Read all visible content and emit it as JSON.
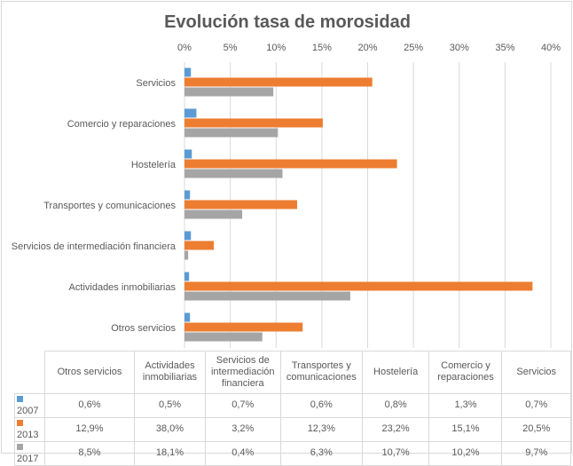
{
  "chart_data": {
    "type": "bar",
    "orientation": "horizontal",
    "title": "Evolución tasa de morosidad",
    "xlim": [
      0,
      40
    ],
    "x_ticks": [
      "0%",
      "5%",
      "10%",
      "15%",
      "20%",
      "25%",
      "30%",
      "35%",
      "40%"
    ],
    "tick_step": 5,
    "x_axis_position": "top",
    "gridlines": true,
    "categories": [
      "Servicios",
      "Comercio y reparaciones",
      "Hostelería",
      "Transportes y comunicaciones",
      "Servicios de intermediación financiera",
      "Actividades inmobiliarias",
      "Otros servicios"
    ],
    "series": [
      {
        "name": "2007",
        "color": "#5b9bd5",
        "values": [
          0.7,
          1.3,
          0.8,
          0.6,
          0.7,
          0.5,
          0.6
        ]
      },
      {
        "name": "2013",
        "color": "#ed7d31",
        "values": [
          20.5,
          15.1,
          23.2,
          12.3,
          3.2,
          38.0,
          12.9
        ]
      },
      {
        "name": "2017",
        "color": "#a5a5a5",
        "values": [
          9.7,
          10.2,
          10.7,
          6.3,
          0.4,
          18.1,
          8.5
        ]
      }
    ],
    "data_table": {
      "headers": [
        "Otros servicios",
        "Actividades inmobiliarias",
        "Servicios de intermediación financiera",
        "Transportes y comunicaciones",
        "Hostelería",
        "Comercio y reparaciones",
        "Servicios"
      ],
      "rows": [
        {
          "label": "2007",
          "color": "#5b9bd5",
          "cells": [
            "0,6%",
            "0,5%",
            "0,7%",
            "0,6%",
            "0,8%",
            "1,3%",
            "0,7%"
          ]
        },
        {
          "label": "2013",
          "color": "#ed7d31",
          "cells": [
            "12,9%",
            "38,0%",
            "3,2%",
            "12,3%",
            "23,2%",
            "15,1%",
            "20,5%"
          ]
        },
        {
          "label": "2017",
          "color": "#a5a5a5",
          "cells": [
            "8,5%",
            "18,1%",
            "0,4%",
            "6,3%",
            "10,7%",
            "10,2%",
            "9,7%"
          ]
        }
      ]
    }
  }
}
